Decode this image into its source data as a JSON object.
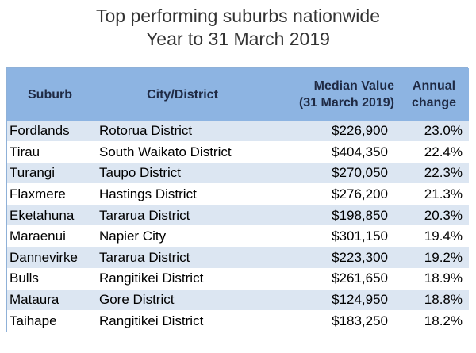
{
  "title": {
    "line1": "Top performing suburbs nationwide",
    "line2": "Year to 31 March 2019"
  },
  "table": {
    "headers": {
      "suburb": "Suburb",
      "city": "City/District",
      "median_line1": "Median Value",
      "median_line2": "(31 March 2019)",
      "annual_line1": "Annual",
      "annual_line2": "change"
    },
    "rows": [
      {
        "suburb": "Fordlands",
        "city": "Rotorua District",
        "median": "$226,900",
        "annual": "23.0%"
      },
      {
        "suburb": "Tirau",
        "city": "South Waikato District",
        "median": "$404,350",
        "annual": "22.4%"
      },
      {
        "suburb": "Turangi",
        "city": "Taupo District",
        "median": "$270,050",
        "annual": "22.3%"
      },
      {
        "suburb": "Flaxmere",
        "city": "Hastings District",
        "median": "$276,200",
        "annual": "21.3%"
      },
      {
        "suburb": "Eketahuna",
        "city": "Tararua District",
        "median": "$198,850",
        "annual": "20.3%"
      },
      {
        "suburb": "Maraenui",
        "city": "Napier City",
        "median": "$301,150",
        "annual": "19.4%"
      },
      {
        "suburb": "Dannevirke",
        "city": "Tararua District",
        "median": "$223,300",
        "annual": "19.2%"
      },
      {
        "suburb": "Bulls",
        "city": "Rangitikei District",
        "median": "$261,650",
        "annual": "18.9%"
      },
      {
        "suburb": "Mataura",
        "city": "Gore District",
        "median": "$124,950",
        "annual": "18.8%"
      },
      {
        "suburb": "Taihape",
        "city": "Rangitikei District",
        "median": "$183,250",
        "annual": "18.2%"
      }
    ]
  }
}
